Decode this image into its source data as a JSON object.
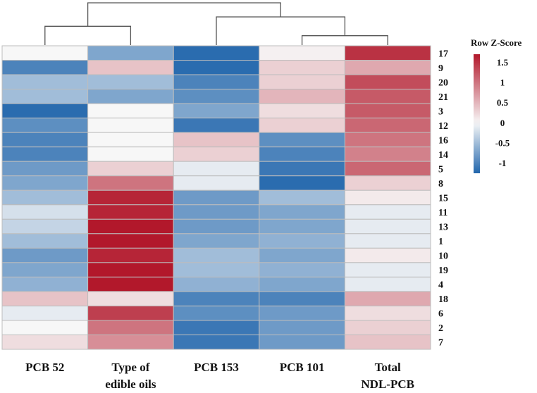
{
  "chart_data": {
    "type": "heatmap",
    "title": "",
    "columns": [
      "PCB 52",
      "Type of edible oils",
      "PCB 153",
      "PCB 101",
      "Total NDL-PCB"
    ],
    "column_label_lines": [
      [
        "PCB 52"
      ],
      [
        "Type of",
        "edible oils"
      ],
      [
        "PCB 153"
      ],
      [
        "PCB 101"
      ],
      [
        "Total",
        "NDL-PCB"
      ]
    ],
    "rows": [
      "17",
      "9",
      "20",
      "21",
      "3",
      "12",
      "16",
      "14",
      "5",
      "8",
      "15",
      "11",
      "13",
      "1",
      "10",
      "19",
      "4",
      "18",
      "6",
      "2",
      "7"
    ],
    "values": [
      [
        0.0,
        -0.7,
        -1.2,
        0.05,
        1.5
      ],
      [
        -1.0,
        0.4,
        -1.2,
        0.3,
        0.6
      ],
      [
        -0.5,
        -0.5,
        -1.0,
        0.3,
        1.3
      ],
      [
        -0.5,
        -0.7,
        -0.9,
        0.5,
        1.2
      ],
      [
        -1.2,
        0.0,
        -0.7,
        0.2,
        1.2
      ],
      [
        -0.9,
        0.0,
        -1.1,
        0.3,
        1.1
      ],
      [
        -1.0,
        0.0,
        0.4,
        -0.9,
        1.0
      ],
      [
        -1.0,
        0.0,
        0.3,
        -1.0,
        0.9
      ],
      [
        -0.8,
        0.3,
        -0.1,
        -1.1,
        1.1
      ],
      [
        -0.7,
        1.0,
        -0.1,
        -1.2,
        0.3
      ],
      [
        -0.5,
        1.6,
        -0.8,
        -0.5,
        0.1
      ],
      [
        -0.2,
        1.6,
        -0.8,
        -0.7,
        -0.1
      ],
      [
        -0.3,
        1.7,
        -0.8,
        -0.7,
        -0.1
      ],
      [
        -0.5,
        1.7,
        -0.7,
        -0.6,
        -0.1
      ],
      [
        -0.8,
        1.6,
        -0.5,
        -0.7,
        0.1
      ],
      [
        -0.7,
        1.7,
        -0.5,
        -0.6,
        -0.1
      ],
      [
        -0.6,
        1.7,
        -0.6,
        -0.7,
        -0.1
      ],
      [
        0.4,
        0.2,
        -1.0,
        -1.0,
        0.6
      ],
      [
        -0.1,
        1.4,
        -0.9,
        -0.8,
        0.2
      ],
      [
        0.0,
        1.0,
        -1.1,
        -0.8,
        0.3
      ],
      [
        0.2,
        0.8,
        -1.1,
        -0.8,
        0.4
      ]
    ],
    "color_scale": {
      "min": -1.25,
      "mid": 0,
      "max": 1.7,
      "low_color": "#2166ac",
      "mid_color": "#f7f7f7",
      "high_color": "#b2182b"
    },
    "legend": {
      "title": "Row Z-Score",
      "ticks": [
        "1.5",
        "1",
        "0.5",
        "0",
        "-0.5",
        "-1"
      ],
      "tick_values": [
        1.5,
        1,
        0.5,
        0,
        -0.5,
        -1
      ],
      "placement": "top-right"
    },
    "dendrogram": {
      "leaf_order": [
        "PCB 52",
        "Type of edible oils",
        "PCB 153",
        "PCB 101",
        "Total NDL-PCB"
      ],
      "merges": [
        {
          "left": "PCB 101",
          "right": "Total NDL-PCB",
          "height": 1
        },
        {
          "left": "PCB 52",
          "right": "Type of edible oils",
          "height": 2
        },
        {
          "left": "PCB 153",
          "right": "PCB 101 + Total NDL-PCB",
          "height": 3
        },
        {
          "left": "PCB 52 + Type of edible oils",
          "right": "PCB 153 + PCB 101 + Total NDL-PCB",
          "height": 4.5
        }
      ]
    }
  }
}
